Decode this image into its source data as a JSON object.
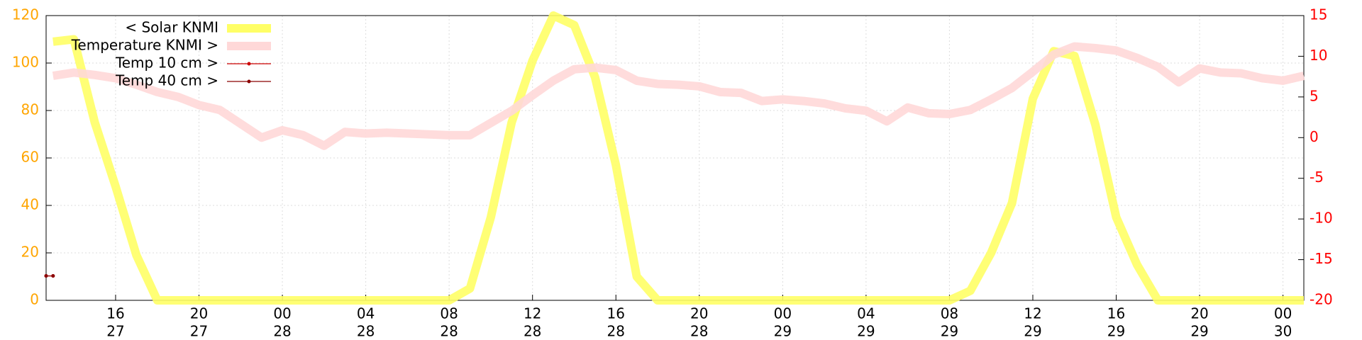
{
  "chart_data": {
    "type": "line",
    "x": [
      "27 13:00",
      "27 14:00",
      "27 15:00",
      "27 16:00",
      "27 17:00",
      "27 18:00",
      "27 19:00",
      "27 20:00",
      "27 21:00",
      "27 22:00",
      "27 23:00",
      "28 00:00",
      "28 01:00",
      "28 02:00",
      "28 03:00",
      "28 04:00",
      "28 05:00",
      "28 06:00",
      "28 07:00",
      "28 08:00",
      "28 09:00",
      "28 10:00",
      "28 11:00",
      "28 12:00",
      "28 13:00",
      "28 14:00",
      "28 15:00",
      "28 16:00",
      "28 17:00",
      "28 18:00",
      "28 19:00",
      "28 20:00",
      "28 21:00",
      "28 22:00",
      "28 23:00",
      "29 00:00",
      "29 01:00",
      "29 02:00",
      "29 03:00",
      "29 04:00",
      "29 05:00",
      "29 06:00",
      "29 07:00",
      "29 08:00",
      "29 09:00",
      "29 10:00",
      "29 11:00",
      "29 12:00",
      "29 13:00",
      "29 14:00",
      "29 15:00",
      "29 16:00",
      "29 17:00",
      "29 18:00",
      "29 19:00",
      "29 20:00",
      "29 21:00",
      "29 22:00",
      "29 23:00",
      "30 00:00",
      "30 01:00"
    ],
    "series": [
      {
        "name": "< Solar KNMI",
        "color": "#ffff66",
        "axis": "y",
        "width": 12,
        "values": [
          109,
          110,
          75,
          48,
          19,
          0,
          0,
          0,
          0,
          0,
          0,
          0,
          0,
          0,
          0,
          0,
          0,
          0,
          0,
          0,
          5,
          35,
          75,
          101,
          120,
          116,
          94,
          57,
          10,
          0,
          0,
          0,
          0,
          0,
          0,
          0,
          0,
          0,
          0,
          0,
          0,
          0,
          0,
          0,
          4,
          20,
          41,
          85,
          105,
          103,
          74,
          35,
          15,
          0,
          0,
          0,
          0,
          0,
          0,
          0,
          0
        ]
      },
      {
        "name": "Temperature KNMI >",
        "color": "#ffd8d8",
        "axis": "y2",
        "width": 12,
        "values": [
          7.6,
          8.0,
          7.7,
          7.3,
          6.5,
          5.6,
          5.0,
          4.0,
          3.4,
          1.7,
          0.0,
          0.9,
          0.3,
          -1.0,
          0.7,
          0.5,
          0.6,
          0.5,
          0.4,
          0.3,
          0.3,
          1.8,
          3.3,
          5.2,
          7.0,
          8.4,
          8.6,
          8.3,
          7.0,
          6.6,
          6.5,
          6.3,
          5.6,
          5.5,
          4.5,
          4.7,
          4.5,
          4.2,
          3.6,
          3.3,
          2.0,
          3.7,
          3.0,
          2.9,
          3.4,
          4.7,
          6.1,
          8.1,
          10.2,
          11.2,
          11.0,
          10.7,
          9.8,
          8.7,
          6.8,
          8.5,
          8.0,
          7.9,
          7.3,
          7.0,
          7.6
        ]
      },
      {
        "name": "Temp 10 cm >",
        "color": "#cc0000",
        "axis": "y2",
        "width": 1.2,
        "marker": true,
        "x": [
          "27 12:40",
          "27 13:00"
        ],
        "values": [
          -17,
          -17
        ]
      },
      {
        "name": "Temp 40 cm >",
        "color": "#8b0000",
        "axis": "y2",
        "width": 1.2,
        "marker": true,
        "x": [
          "27 12:40",
          "27 13:00"
        ],
        "values": [
          -17,
          -17
        ]
      }
    ],
    "xlim": [
      "27 12:40",
      "30 01:00"
    ],
    "xticks": [
      {
        "value": "27 16:00",
        "label": [
          "16",
          "27"
        ]
      },
      {
        "value": "27 20:00",
        "label": [
          "20",
          "27"
        ]
      },
      {
        "value": "28 00:00",
        "label": [
          "00",
          "28"
        ]
      },
      {
        "value": "28 04:00",
        "label": [
          "04",
          "28"
        ]
      },
      {
        "value": "28 08:00",
        "label": [
          "08",
          "28"
        ]
      },
      {
        "value": "28 12:00",
        "label": [
          "12",
          "28"
        ]
      },
      {
        "value": "28 16:00",
        "label": [
          "16",
          "28"
        ]
      },
      {
        "value": "28 20:00",
        "label": [
          "20",
          "28"
        ]
      },
      {
        "value": "29 00:00",
        "label": [
          "00",
          "29"
        ]
      },
      {
        "value": "29 04:00",
        "label": [
          "04",
          "29"
        ]
      },
      {
        "value": "29 08:00",
        "label": [
          "08",
          "29"
        ]
      },
      {
        "value": "29 12:00",
        "label": [
          "12",
          "29"
        ]
      },
      {
        "value": "29 16:00",
        "label": [
          "16",
          "29"
        ]
      },
      {
        "value": "29 20:00",
        "label": [
          "20",
          "29"
        ]
      },
      {
        "value": "30 00:00",
        "label": [
          "00",
          "30"
        ]
      }
    ],
    "ylim": [
      0,
      120
    ],
    "yticks": [
      0,
      20,
      40,
      60,
      80,
      100,
      120
    ],
    "ycolor": "#ffa500",
    "y2lim": [
      -20,
      15
    ],
    "y2ticks": [
      -20,
      -15,
      -10,
      -5,
      0,
      5,
      10,
      15
    ],
    "y2color": "#ff0000",
    "grid": true,
    "legend": "top-left"
  }
}
